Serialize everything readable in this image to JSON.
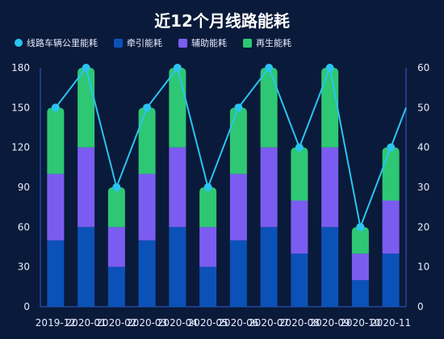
{
  "chart_data": {
    "type": "bar",
    "title": "近12个月线路能耗",
    "categories": [
      "2019-12",
      "2020-01",
      "2020-02",
      "2020-03",
      "2020-04",
      "2020-05",
      "2020-06",
      "2020-07",
      "2020-08",
      "2020-09",
      "2020-10",
      "2020-11"
    ],
    "series": [
      {
        "name": "线路车辆公里能耗",
        "kind": "line",
        "axis": "right",
        "color": "#2bc4f0",
        "values": [
          50,
          60,
          30,
          50,
          60,
          30,
          50,
          60,
          40,
          60,
          20,
          40
        ]
      },
      {
        "name": "牵引能耗",
        "kind": "bar",
        "stack": "total",
        "axis": "left",
        "color": "#0b52b8",
        "values": [
          50,
          60,
          30,
          50,
          60,
          30,
          50,
          60,
          40,
          60,
          20,
          40
        ]
      },
      {
        "name": "辅助能耗",
        "kind": "bar",
        "stack": "total",
        "axis": "left",
        "color": "#7b5cf0",
        "values": [
          50,
          60,
          30,
          50,
          60,
          30,
          50,
          60,
          40,
          60,
          20,
          40
        ]
      },
      {
        "name": "再生能耗",
        "kind": "bar",
        "stack": "total",
        "axis": "left",
        "color": "#2ec774",
        "values": [
          50,
          60,
          30,
          50,
          60,
          30,
          50,
          60,
          40,
          60,
          20,
          40
        ]
      }
    ],
    "y_left": {
      "ylim": [
        0,
        180
      ],
      "ticks": [
        "0",
        "30",
        "60",
        "90",
        "120",
        "150",
        "180"
      ]
    },
    "y_right": {
      "ylim": [
        0,
        60
      ],
      "ticks": [
        "0",
        "10",
        "20",
        "30",
        "40",
        "50",
        "60"
      ]
    },
    "legend_position": "top-left",
    "grid": false
  }
}
